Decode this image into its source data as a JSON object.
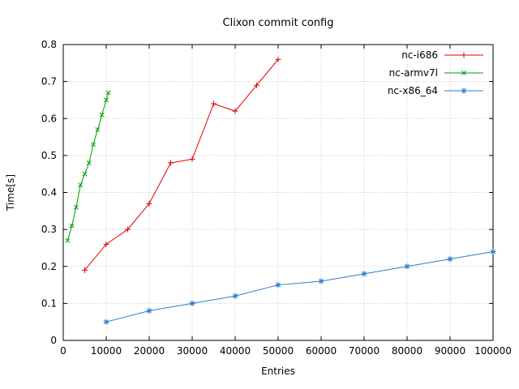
{
  "chart_data": {
    "type": "line",
    "title": "Clixon commit config",
    "xlabel": "Entries",
    "ylabel": "Time[s]",
    "xlim": [
      0,
      100000
    ],
    "ylim": [
      0,
      0.8
    ],
    "grid": true,
    "grid_color": "#c8c8c8",
    "border_color": "#000000",
    "legend_position": "top-right-inside",
    "xticks": [
      {
        "v": 0,
        "label": "0"
      },
      {
        "v": 10000,
        "label": "10000"
      },
      {
        "v": 20000,
        "label": "20000"
      },
      {
        "v": 30000,
        "label": "30000"
      },
      {
        "v": 40000,
        "label": "40000"
      },
      {
        "v": 50000,
        "label": "50000"
      },
      {
        "v": 60000,
        "label": "60000"
      },
      {
        "v": 70000,
        "label": "70000"
      },
      {
        "v": 80000,
        "label": "80000"
      },
      {
        "v": 90000,
        "label": "90000"
      },
      {
        "v": 100000,
        "label": "100000"
      }
    ],
    "yticks": [
      {
        "v": 0,
        "label": "0"
      },
      {
        "v": 0.1,
        "label": "0.1"
      },
      {
        "v": 0.2,
        "label": "0.2"
      },
      {
        "v": 0.3,
        "label": "0.3"
      },
      {
        "v": 0.4,
        "label": "0.4"
      },
      {
        "v": 0.5,
        "label": "0.5"
      },
      {
        "v": 0.6,
        "label": "0.6"
      },
      {
        "v": 0.7,
        "label": "0.7"
      },
      {
        "v": 0.8,
        "label": "0.8"
      }
    ],
    "series": [
      {
        "name": "nc-i686",
        "color": "#e00000",
        "marker": "plus",
        "points": [
          [
            5000,
            0.19
          ],
          [
            10000,
            0.26
          ],
          [
            15000,
            0.3
          ],
          [
            20000,
            0.37
          ],
          [
            25000,
            0.48
          ],
          [
            30000,
            0.49
          ],
          [
            35000,
            0.64
          ],
          [
            40000,
            0.62
          ],
          [
            45000,
            0.69
          ],
          [
            50000,
            0.76
          ]
        ]
      },
      {
        "name": "nc-armv7l",
        "color": "#00a000",
        "marker": "cross",
        "points": [
          [
            1000,
            0.27
          ],
          [
            2000,
            0.31
          ],
          [
            3000,
            0.36
          ],
          [
            4000,
            0.42
          ],
          [
            5000,
            0.45
          ],
          [
            6000,
            0.48
          ],
          [
            7000,
            0.53
          ],
          [
            8000,
            0.57
          ],
          [
            9000,
            0.61
          ],
          [
            10000,
            0.65
          ],
          [
            10500,
            0.67
          ]
        ]
      },
      {
        "name": "nc-x86_64",
        "color": "#2e7bcc",
        "marker": "star",
        "points": [
          [
            10000,
            0.05
          ],
          [
            20000,
            0.08
          ],
          [
            30000,
            0.1
          ],
          [
            40000,
            0.12
          ],
          [
            50000,
            0.15
          ],
          [
            60000,
            0.16
          ],
          [
            70000,
            0.18
          ],
          [
            80000,
            0.2
          ],
          [
            90000,
            0.22
          ],
          [
            100000,
            0.24
          ]
        ]
      }
    ]
  }
}
